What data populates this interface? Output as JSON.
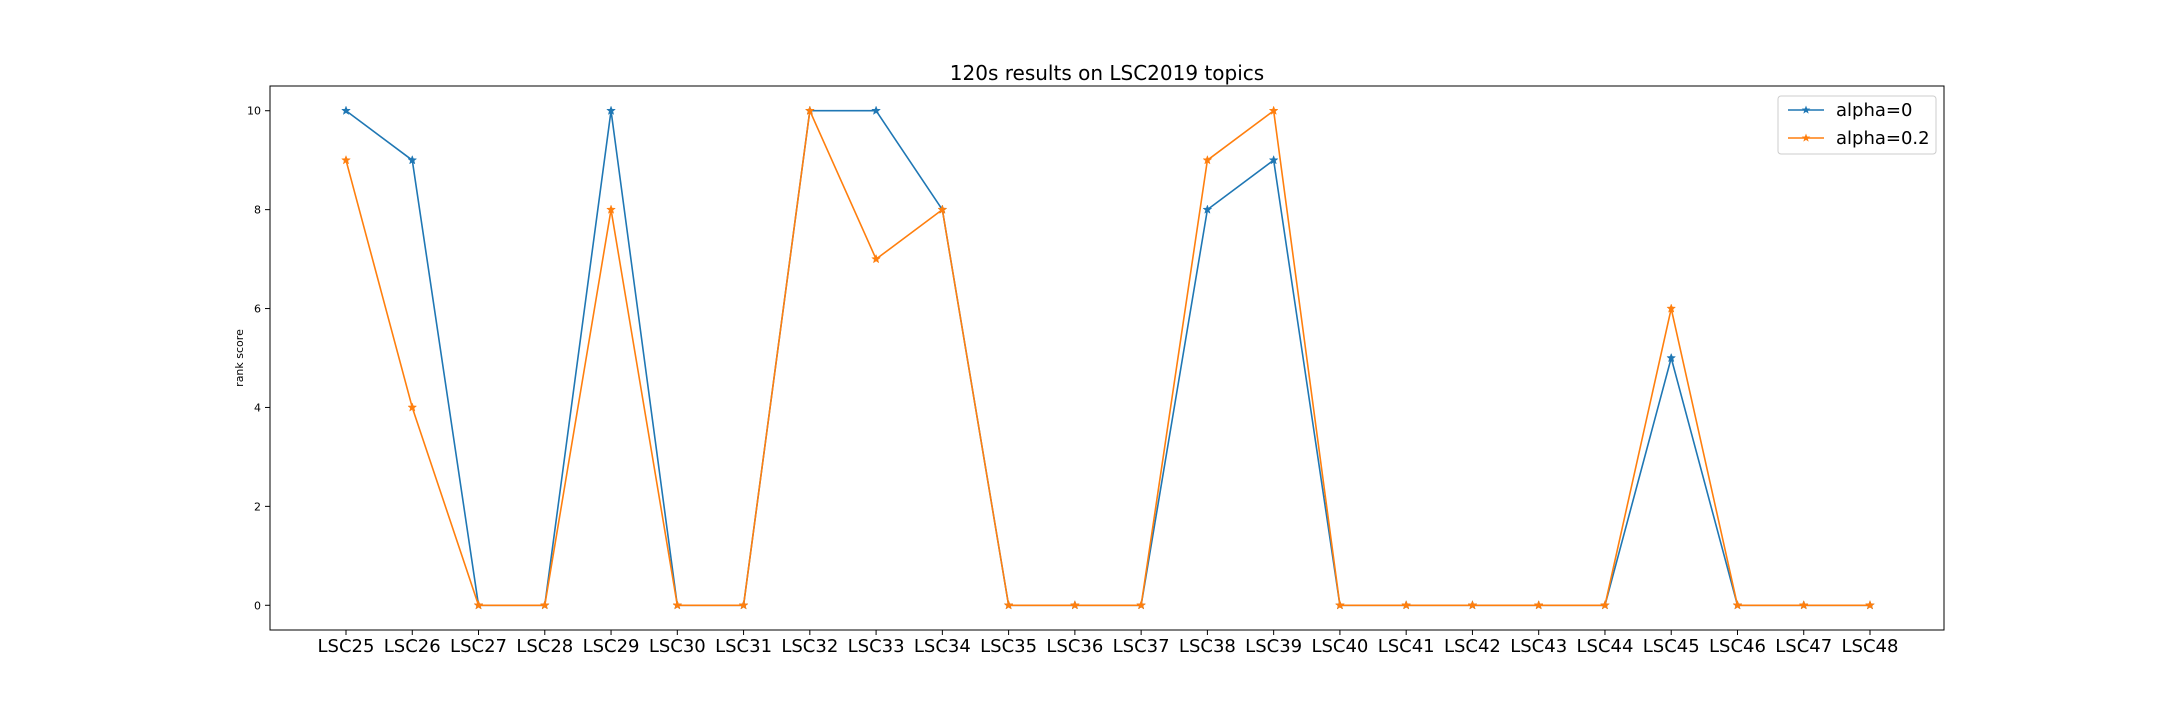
{
  "chart_data": {
    "type": "line",
    "title": "120s results on LSC2019 topics",
    "xlabel": "",
    "ylabel": "rank score",
    "ylim": [
      -0.5,
      10.5
    ],
    "yticks": [
      0,
      2,
      4,
      6,
      8,
      10
    ],
    "categories": [
      "LSC25",
      "LSC26",
      "LSC27",
      "LSC28",
      "LSC29",
      "LSC30",
      "LSC31",
      "LSC32",
      "LSC33",
      "LSC34",
      "LSC35",
      "LSC36",
      "LSC37",
      "LSC38",
      "LSC39",
      "LSC40",
      "LSC41",
      "LSC42",
      "LSC43",
      "LSC44",
      "LSC45",
      "LSC46",
      "LSC47",
      "LSC48"
    ],
    "series": [
      {
        "name": "alpha=0",
        "color": "#1f77b4",
        "marker": "star",
        "values": [
          10,
          9,
          0,
          0,
          10,
          0,
          0,
          10,
          10,
          8,
          0,
          0,
          0,
          8,
          9,
          0,
          0,
          0,
          0,
          0,
          5,
          0,
          0,
          0
        ]
      },
      {
        "name": "alpha=0.2",
        "color": "#ff7f0e",
        "marker": "star",
        "values": [
          9,
          4,
          0,
          0,
          8,
          0,
          0,
          10,
          7,
          8,
          0,
          0,
          0,
          9,
          10,
          0,
          0,
          0,
          0,
          0,
          6,
          0,
          0,
          0
        ]
      }
    ],
    "grid": false,
    "legend": "top-right"
  }
}
